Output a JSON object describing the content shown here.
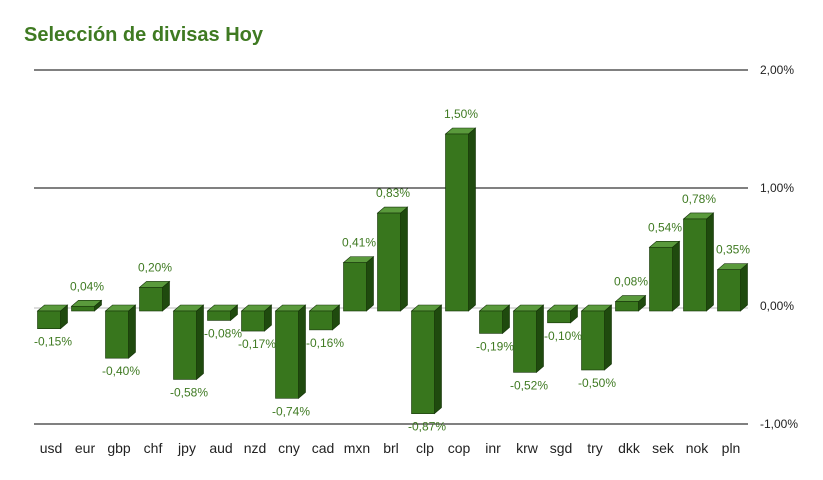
{
  "colors": {
    "title": "#3f7a22",
    "bar_front": "#38761d",
    "bar_top": "#5a9a3c",
    "bar_side": "#1f4a0e",
    "data_label": "#3f7a22"
  },
  "chart_data": {
    "type": "bar",
    "title": "Selección de divisas Hoy",
    "xlabel": "",
    "ylabel": "",
    "ylim": [
      -1.0,
      2.0
    ],
    "y_ticks": [
      2.0,
      1.0,
      0.0,
      -1.0
    ],
    "y_tick_labels": [
      "2,00%",
      "1,00%",
      "0,00%",
      "-1,00%"
    ],
    "y_axis_side": "right",
    "grid": true,
    "style": "3d",
    "categories": [
      "usd",
      "eur",
      "gbp",
      "chf",
      "jpy",
      "aud",
      "nzd",
      "cny",
      "cad",
      "mxn",
      "brl",
      "clp",
      "cop",
      "inr",
      "krw",
      "sgd",
      "try",
      "dkk",
      "sek",
      "nok",
      "pln"
    ],
    "values": [
      -0.15,
      0.04,
      -0.4,
      0.2,
      -0.58,
      -0.08,
      -0.17,
      -0.74,
      -0.16,
      0.41,
      0.83,
      -0.87,
      1.5,
      -0.19,
      -0.52,
      -0.1,
      -0.5,
      0.08,
      0.54,
      0.78,
      0.35
    ],
    "data_labels": [
      "-0,15%",
      "0,04%",
      "-0,40%",
      "0,20%",
      "-0,58%",
      "-0,08%",
      "-0,17%",
      "-0,74%",
      "-0,16%",
      "0,41%",
      "0,83%",
      "-0,87%",
      "1,50%",
      "-0,19%",
      "-0,52%",
      "-0,10%",
      "-0,50%",
      "0,08%",
      "0,54%",
      "0,78%",
      "0,35%"
    ]
  }
}
